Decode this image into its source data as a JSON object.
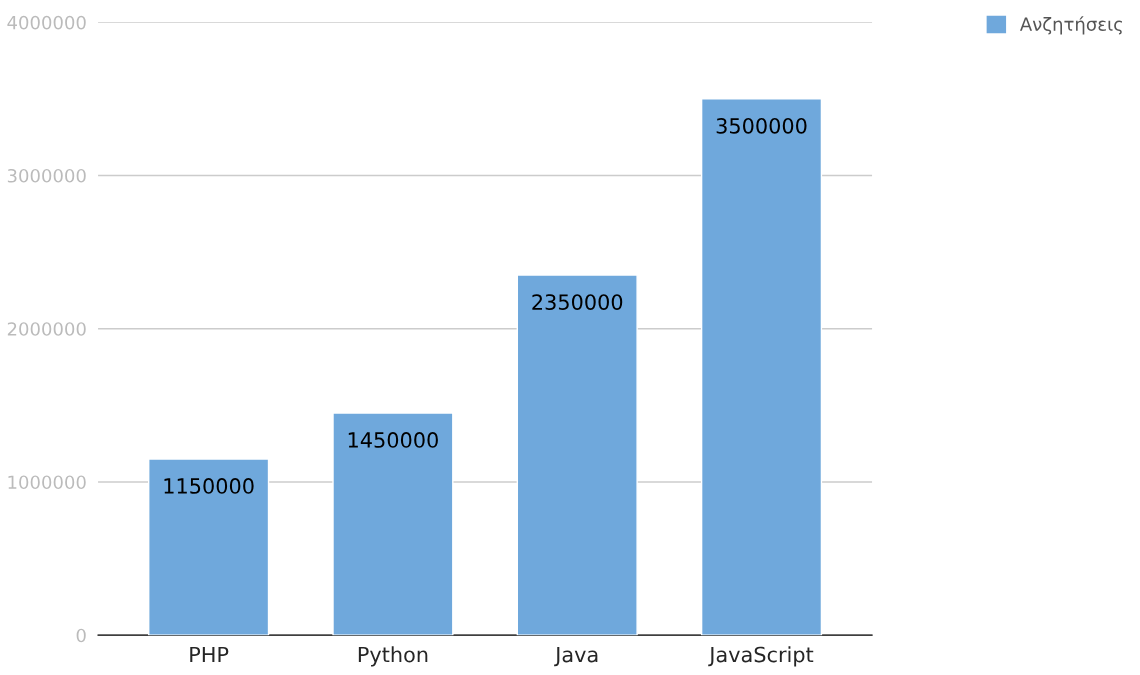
{
  "chart_data": {
    "type": "bar",
    "categories": [
      "PHP",
      "Python",
      "Java",
      "JavaScript"
    ],
    "series": [
      {
        "name": "Ανζητήσεις",
        "color": "#6fa8dc",
        "values": [
          1150000,
          1450000,
          2350000,
          3500000
        ]
      }
    ],
    "ylim": [
      0,
      4000000
    ],
    "yticks": [
      0,
      1000000,
      2000000,
      3000000,
      4000000
    ],
    "grid": "y",
    "legend": "top right",
    "data_labels": true
  }
}
